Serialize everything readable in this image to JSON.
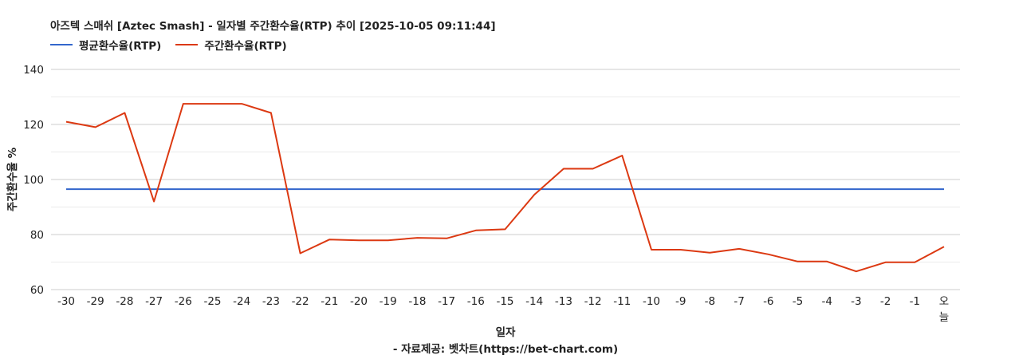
{
  "chart_data": {
    "type": "line",
    "title": "아즈텍 스매쉬 [Aztec Smash] - 일자별 주간환수율(RTP) 추이 [2025-10-05 09:11:44]",
    "xlabel": "일자",
    "ylabel": "주간환수율 %",
    "footer": "- 자료제공: 벳차트(https://bet-chart.com)",
    "ylim": [
      60,
      140
    ],
    "yticks": [
      60,
      80,
      100,
      120,
      140
    ],
    "legend_position": "top-left",
    "grid": true,
    "categories": [
      "-30",
      "-29",
      "-28",
      "-27",
      "-26",
      "-25",
      "-24",
      "-23",
      "-22",
      "-21",
      "-20",
      "-19",
      "-18",
      "-17",
      "-16",
      "-15",
      "-14",
      "-13",
      "-12",
      "-11",
      "-10",
      "-9",
      "-8",
      "-7",
      "-6",
      "-5",
      "-4",
      "-3",
      "-2",
      "-1",
      "오늘"
    ],
    "series": [
      {
        "name": "평균환수율(RTP)",
        "color": "#3366cc",
        "values": [
          96.5,
          96.5,
          96.5,
          96.5,
          96.5,
          96.5,
          96.5,
          96.5,
          96.5,
          96.5,
          96.5,
          96.5,
          96.5,
          96.5,
          96.5,
          96.5,
          96.5,
          96.5,
          96.5,
          96.5,
          96.5,
          96.5,
          96.5,
          96.5,
          96.5,
          96.5,
          96.5,
          96.5,
          96.5,
          96.5,
          96.5
        ]
      },
      {
        "name": "주간환수율(RTP)",
        "color": "#dc3912",
        "values": [
          121.0,
          119.0,
          124.2,
          92.0,
          127.5,
          127.5,
          127.5,
          124.2,
          73.2,
          78.2,
          77.9,
          77.9,
          78.8,
          78.6,
          81.5,
          81.9,
          94.5,
          103.9,
          103.9,
          108.7,
          74.5,
          74.5,
          73.4,
          74.8,
          72.8,
          70.2,
          70.2,
          66.6,
          69.9,
          69.9,
          75.6
        ]
      }
    ]
  }
}
